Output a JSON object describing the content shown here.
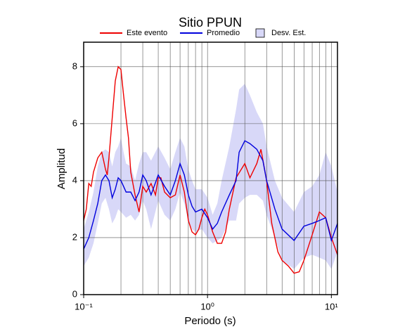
{
  "chart_data": {
    "type": "line",
    "title": "Sitio PPUN",
    "x_label": "Periodo (s)",
    "y_label": "Amplitud",
    "xscale": "log",
    "xlim": [
      0.1,
      11.2
    ],
    "ylim": [
      0,
      8.86
    ],
    "xticks": [
      {
        "value": 0.1,
        "label": "10⁻¹"
      },
      {
        "value": 1,
        "label": "10⁰"
      },
      {
        "value": 10,
        "label": "10¹"
      }
    ],
    "yticks": [
      0,
      2,
      4,
      6,
      8
    ],
    "grid": true,
    "minor_grid": true,
    "legend": "top",
    "series": [
      {
        "name": "Este evento",
        "style": "line",
        "color": "#ee0000",
        "x": [
          0.1,
          0.105,
          0.11,
          0.115,
          0.12,
          0.13,
          0.14,
          0.145,
          0.15,
          0.155,
          0.16,
          0.17,
          0.18,
          0.19,
          0.2,
          0.21,
          0.22,
          0.23,
          0.24,
          0.26,
          0.28,
          0.3,
          0.32,
          0.35,
          0.38,
          0.4,
          0.42,
          0.45,
          0.5,
          0.55,
          0.6,
          0.65,
          0.7,
          0.75,
          0.8,
          0.85,
          0.9,
          0.95,
          1.0,
          1.1,
          1.2,
          1.3,
          1.4,
          1.5,
          1.7,
          2.0,
          2.2,
          2.5,
          2.7,
          3.0,
          3.3,
          3.7,
          4.0,
          4.5,
          5.0,
          5.5,
          6.0,
          7.0,
          8.0,
          9.0,
          10,
          11.2
        ],
        "values": [
          2.6,
          3.0,
          3.9,
          3.8,
          4.3,
          4.8,
          5.0,
          4.7,
          4.4,
          4.2,
          4.8,
          6.2,
          7.5,
          8.0,
          7.9,
          7.0,
          6.2,
          5.5,
          4.3,
          3.5,
          2.9,
          3.8,
          3.6,
          3.9,
          3.5,
          4.1,
          4.1,
          3.6,
          3.4,
          3.5,
          4.2,
          3.6,
          2.6,
          2.2,
          2.1,
          2.3,
          2.7,
          3.0,
          2.8,
          2.2,
          1.8,
          1.8,
          2.2,
          3.0,
          4.1,
          4.6,
          4.1,
          4.6,
          5.1,
          4.0,
          2.5,
          1.5,
          1.2,
          1.0,
          0.75,
          0.8,
          1.2,
          2.1,
          2.9,
          2.7,
          2.0,
          1.4
        ]
      },
      {
        "name": "Promedio",
        "style": "line",
        "color": "#0000dd",
        "x": [
          0.1,
          0.11,
          0.12,
          0.13,
          0.14,
          0.15,
          0.16,
          0.17,
          0.18,
          0.19,
          0.2,
          0.21,
          0.22,
          0.24,
          0.26,
          0.28,
          0.3,
          0.32,
          0.35,
          0.4,
          0.45,
          0.5,
          0.55,
          0.6,
          0.65,
          0.7,
          0.75,
          0.8,
          0.9,
          1.0,
          1.1,
          1.2,
          1.3,
          1.5,
          1.7,
          1.8,
          2.0,
          2.2,
          2.5,
          2.8,
          3.0,
          3.5,
          4.0,
          5.0,
          6.0,
          7.0,
          8.0,
          9.0,
          10,
          11.2
        ],
        "values": [
          1.6,
          2.0,
          2.6,
          3.2,
          4.0,
          4.2,
          4.0,
          3.4,
          3.7,
          4.1,
          4.0,
          3.8,
          3.6,
          3.6,
          3.3,
          3.6,
          4.2,
          4.0,
          3.5,
          4.2,
          3.8,
          3.5,
          4.0,
          4.6,
          4.2,
          3.5,
          3.1,
          2.9,
          3.0,
          2.7,
          2.3,
          2.5,
          2.9,
          3.5,
          4.0,
          5.0,
          5.4,
          5.3,
          5.1,
          4.7,
          4.0,
          3.0,
          2.3,
          1.9,
          2.4,
          2.5,
          2.6,
          2.7,
          1.9,
          2.5
        ]
      },
      {
        "name": "Desv. Est.",
        "style": "band",
        "color": "#d8d8f8",
        "x": [
          0.1,
          0.11,
          0.12,
          0.13,
          0.14,
          0.15,
          0.16,
          0.17,
          0.18,
          0.19,
          0.2,
          0.21,
          0.22,
          0.24,
          0.26,
          0.28,
          0.3,
          0.32,
          0.35,
          0.4,
          0.45,
          0.5,
          0.55,
          0.6,
          0.65,
          0.7,
          0.75,
          0.8,
          0.9,
          1.0,
          1.1,
          1.2,
          1.3,
          1.5,
          1.7,
          1.8,
          2.0,
          2.2,
          2.5,
          2.8,
          3.0,
          3.5,
          4.0,
          5.0,
          6.0,
          7.0,
          8.0,
          9.0,
          10,
          11.2
        ],
        "lower": [
          1.0,
          1.3,
          1.8,
          2.5,
          3.2,
          3.4,
          3.0,
          2.5,
          2.7,
          3.0,
          2.9,
          2.8,
          2.7,
          2.8,
          2.6,
          2.8,
          3.3,
          3.0,
          2.3,
          3.3,
          2.8,
          2.6,
          3.0,
          3.6,
          3.2,
          2.6,
          2.3,
          2.2,
          2.3,
          2.0,
          1.8,
          1.9,
          2.0,
          2.6,
          2.6,
          3.2,
          3.4,
          3.5,
          3.5,
          3.3,
          2.8,
          2.0,
          1.2,
          0.9,
          1.3,
          1.4,
          1.3,
          1.2,
          0.9,
          1.5
        ],
        "upper": [
          2.3,
          2.9,
          3.6,
          4.5,
          5.0,
          5.1,
          5.0,
          4.5,
          5.0,
          5.2,
          5.5,
          5.0,
          4.6,
          4.5,
          4.0,
          4.6,
          5.0,
          5.0,
          4.7,
          5.2,
          4.8,
          4.4,
          5.0,
          5.5,
          5.2,
          4.4,
          4.0,
          3.7,
          3.7,
          3.4,
          2.8,
          3.2,
          4.0,
          5.2,
          6.5,
          7.2,
          7.4,
          7.0,
          6.4,
          6.0,
          5.2,
          4.0,
          3.4,
          2.9,
          3.6,
          3.8,
          4.2,
          5.0,
          4.5,
          3.6
        ]
      }
    ]
  }
}
